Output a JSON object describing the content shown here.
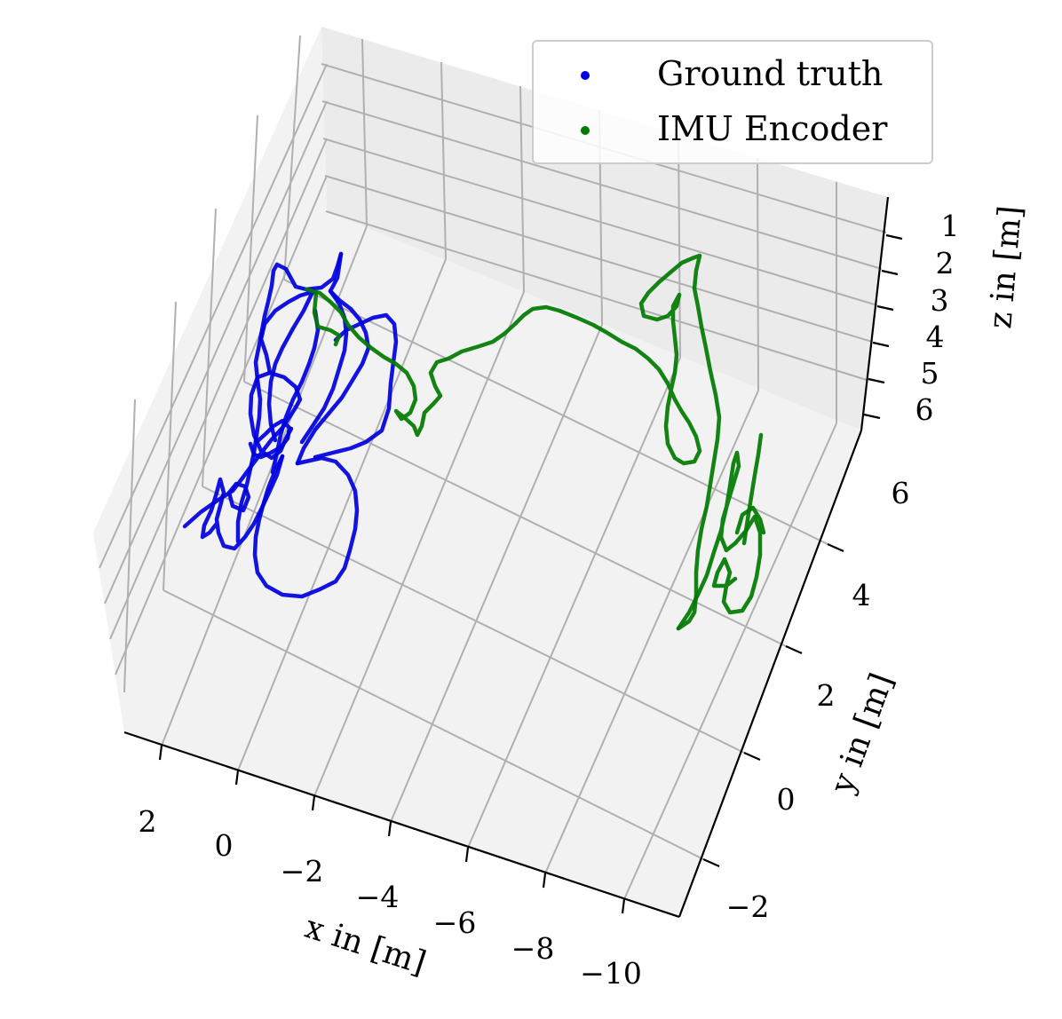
{
  "chart_data": {
    "type": "line",
    "projection": "3d",
    "grid": true,
    "legend_position": "top-right",
    "xlabel": "x in [m]",
    "ylabel": "y in [m]",
    "zlabel": "z in [m]",
    "x_ticks": [
      "2",
      "0",
      "−2",
      "−4",
      "−6",
      "−8",
      "−10"
    ],
    "y_ticks": [
      "6",
      "4",
      "2",
      "0",
      "−2"
    ],
    "z_ticks": [
      "1",
      "2",
      "3",
      "4",
      "5",
      "6"
    ],
    "series": [
      {
        "name": "Ground truth",
        "color": "#0000e0"
      },
      {
        "name": "IMU Encoder",
        "color": "#007a00"
      }
    ]
  }
}
